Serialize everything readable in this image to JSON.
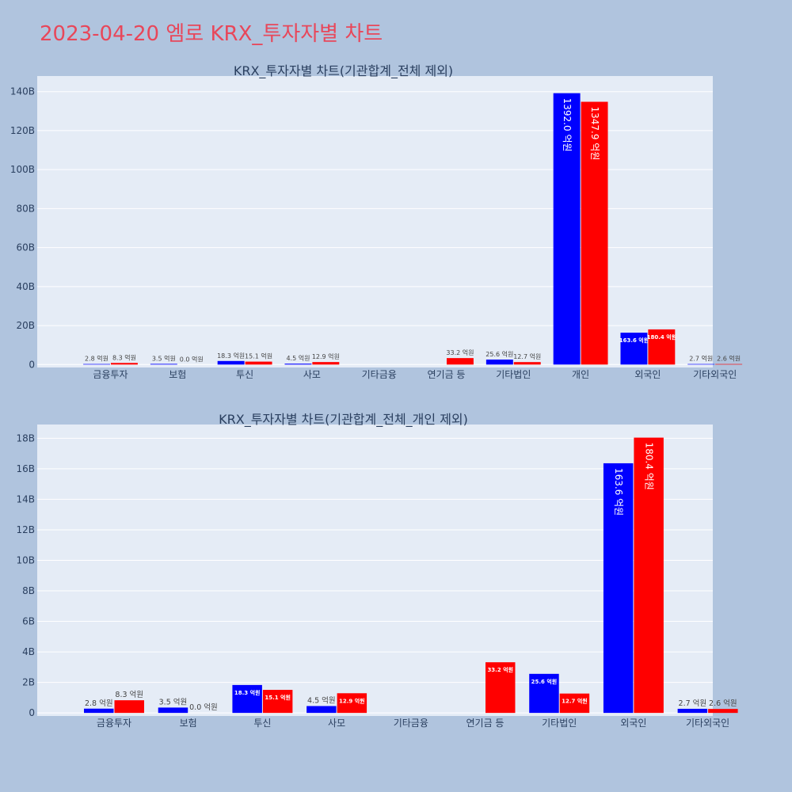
{
  "page": {
    "title": "2023-04-20 엠로 KRX_투자자별 차트"
  },
  "colors": {
    "buy": "#0000ff",
    "sell": "#ff0000",
    "plot_bg": "#e5ecf6",
    "page_bg": "#b0c4de",
    "title": "#e8475a"
  },
  "chart_data": [
    {
      "type": "bar",
      "title": "KRX_투자자별 차트(기관합계_전체 제외)",
      "categories": [
        "금융투자",
        "보험",
        "투신",
        "사모",
        "기타금융",
        "연기금 등",
        "기타법인",
        "개인",
        "외국인",
        "기타외국인"
      ],
      "series": [
        {
          "color": "#0000ff",
          "values": [
            0.28,
            0.35,
            1.83,
            0.45,
            null,
            null,
            2.56,
            139.2,
            16.36,
            0.27
          ],
          "labels": [
            "2.8 억원",
            "3.5 억원",
            "18.3 억원",
            "4.5 억원",
            "",
            "",
            "25.6 억원",
            "1392.0 억원",
            "163.6 억원",
            "2.7 억원"
          ]
        },
        {
          "color": "#ff0000",
          "values": [
            0.83,
            0.0,
            1.51,
            1.29,
            null,
            3.32,
            1.27,
            134.79,
            18.04,
            0.26
          ],
          "labels": [
            "8.3 억원",
            "0.0 억원",
            "15.1 억원",
            "12.9 억원",
            "",
            "33.2 억원",
            "12.7 억원",
            "1347.9 억원",
            "180.4 억원",
            "2.6 억원"
          ]
        }
      ],
      "y_unit": "B",
      "ylim": [
        -1.5,
        148
      ],
      "yticks": [
        0,
        20,
        40,
        60,
        80,
        100,
        120,
        140
      ],
      "ytick_labels": [
        "0",
        "20B",
        "40B",
        "60B",
        "80B",
        "100B",
        "120B",
        "140B"
      ],
      "grid": true
    },
    {
      "type": "bar",
      "title": "KRX_투자자별 차트(기관합계_전체_개인 제외)",
      "categories": [
        "금융투자",
        "보험",
        "투신",
        "사모",
        "기타금융",
        "연기금 등",
        "기타법인",
        "외국인",
        "기타외국인"
      ],
      "series": [
        {
          "color": "#0000ff",
          "values": [
            0.28,
            0.35,
            1.83,
            0.45,
            null,
            null,
            2.56,
            16.36,
            0.27
          ],
          "labels": [
            "2.8 억원",
            "3.5 억원",
            "18.3 억원",
            "4.5 억원",
            "",
            "",
            "25.6 억원",
            "163.6 억원",
            "2.7 억원"
          ]
        },
        {
          "color": "#ff0000",
          "values": [
            0.83,
            0.0,
            1.51,
            1.29,
            null,
            3.32,
            1.27,
            18.04,
            0.26
          ],
          "labels": [
            "8.3 억원",
            "0.0 억원",
            "15.1 억원",
            "12.9 억원",
            "",
            "33.2 억원",
            "12.7 억원",
            "180.4 억원",
            "2.6 억원"
          ]
        }
      ],
      "y_unit": "B",
      "ylim": [
        -0.2,
        18.9
      ],
      "yticks": [
        0,
        2,
        4,
        6,
        8,
        10,
        12,
        14,
        16,
        18
      ],
      "ytick_labels": [
        "0",
        "2B",
        "4B",
        "6B",
        "8B",
        "10B",
        "12B",
        "14B",
        "16B",
        "18B"
      ],
      "grid": true
    }
  ]
}
